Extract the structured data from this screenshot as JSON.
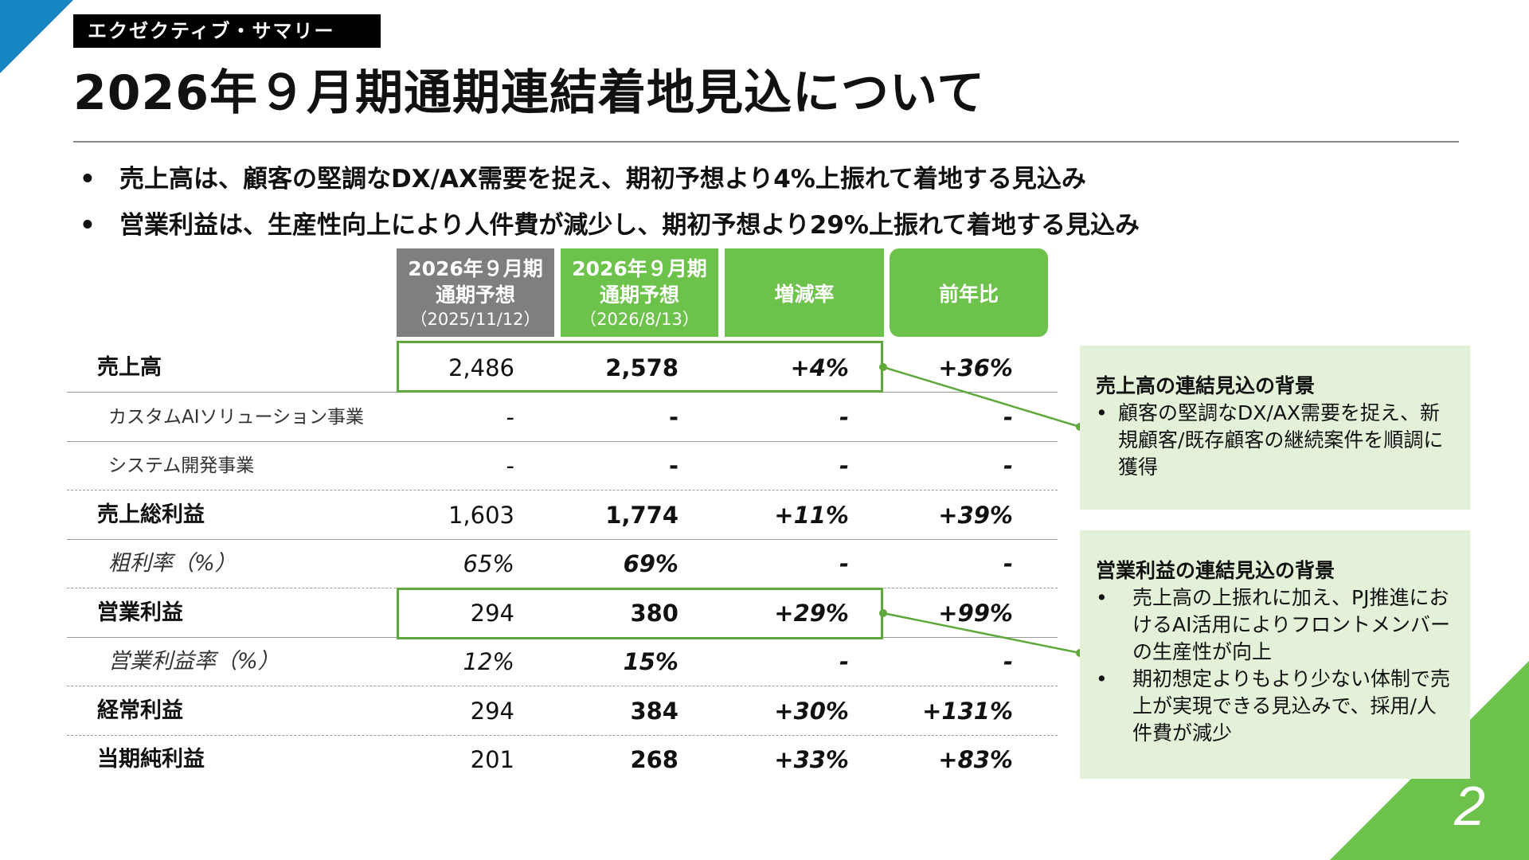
{
  "section_tag": "エクゼクティブ・サマリー",
  "title": "2026年９月期通期連結着地見込について",
  "bullets": [
    "売上高は、顧客の堅調なDX/AX需要を捉え、期初予想より4%上振れて着地する見込み",
    "営業利益は、生産性向上により人件費が減少し、期初予想より29%上振れて着地する見込み"
  ],
  "bullet_symbol": "•",
  "table": {
    "headers": {
      "col1": {
        "l1": "2026年９月期",
        "l2": "通期予想",
        "l3": "（2025/11/12）"
      },
      "col2": {
        "l1": "2026年９月期",
        "l2": "通期予想",
        "l3": "（2026/8/13）"
      },
      "col3": "増減率",
      "col4": "前年比"
    },
    "rows": [
      {
        "label": "売上高",
        "v1": "2,486",
        "v2": "2,578",
        "v3": "+4%",
        "v4": "+36%"
      },
      {
        "label": "カスタムAIソリューション事業",
        "v1": "-",
        "v2": "-",
        "v3": "-",
        "v4": "-"
      },
      {
        "label": "システム開発事業",
        "v1": "-",
        "v2": "-",
        "v3": "-",
        "v4": "-"
      },
      {
        "label": "売上総利益",
        "v1": "1,603",
        "v2": "1,774",
        "v3": "+11%",
        "v4": "+39%"
      },
      {
        "label": "粗利率（%）",
        "v1": "65%",
        "v2": "69%",
        "v3": "-",
        "v4": "-"
      },
      {
        "label": "営業利益",
        "v1": "294",
        "v2": "380",
        "v3": "+29%",
        "v4": "+99%"
      },
      {
        "label": "営業利益率（%）",
        "v1": "12%",
        "v2": "15%",
        "v3": "-",
        "v4": "-"
      },
      {
        "label": "経常利益",
        "v1": "294",
        "v2": "384",
        "v3": "+30%",
        "v4": "+131%"
      },
      {
        "label": "当期純利益",
        "v1": "201",
        "v2": "268",
        "v3": "+33%",
        "v4": "+83%"
      }
    ]
  },
  "panels": {
    "sales": {
      "title": "売上高の連結見込の背景",
      "items": [
        "顧客の堅調なDX/AX需要を捉え、新規顧客/既存顧客の継続案件を順調に獲得"
      ]
    },
    "operating": {
      "title": "営業利益の連結見込の背景",
      "items": [
        "売上高の上振れに加え、PJ推進におけるAI活用によりフロントメンバーの生産性が向上",
        "期初想定よりもより少ない体制で売上が実現できる見込みで、採用/人件費が減少"
      ]
    }
  },
  "page_number": "2",
  "colors": {
    "header_gray": "#7f7f7f",
    "accent_green": "#6cc24a",
    "box_green": "#5fa83c",
    "panel_bg": "#e3f1d9",
    "corner_blue": "#1685c2"
  }
}
